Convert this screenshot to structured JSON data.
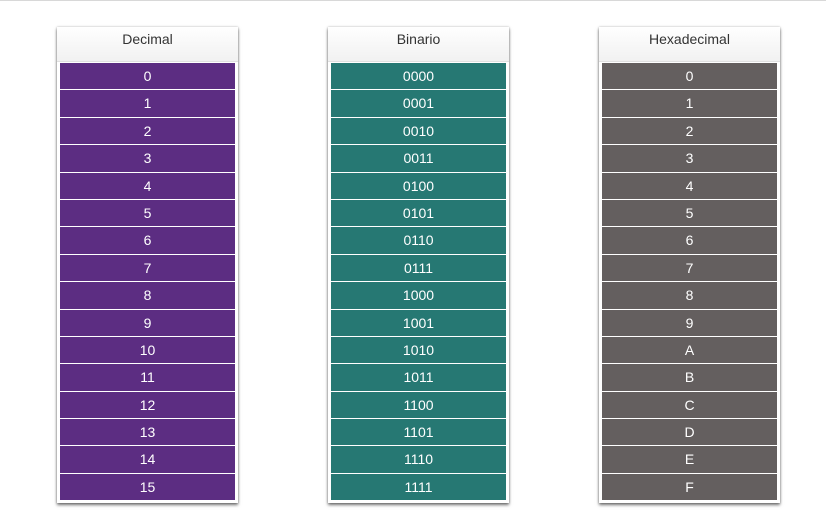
{
  "columns": [
    {
      "header": "Decimal",
      "color": "#5c2d82",
      "cells": [
        "0",
        "1",
        "2",
        "3",
        "4",
        "5",
        "6",
        "7",
        "8",
        "9",
        "10",
        "11",
        "12",
        "13",
        "14",
        "15"
      ]
    },
    {
      "header": "Binario",
      "color": "#267873",
      "cells": [
        "0000",
        "0001",
        "0010",
        "0011",
        "0100",
        "0101",
        "0110",
        "0111",
        "1000",
        "1001",
        "1010",
        "1011",
        "1100",
        "1101",
        "1110",
        "1111"
      ]
    },
    {
      "header": "Hexadecimal",
      "color": "#645f5f",
      "cells": [
        "0",
        "1",
        "2",
        "3",
        "4",
        "5",
        "6",
        "7",
        "8",
        "9",
        "A",
        "B",
        "C",
        "D",
        "E",
        "F"
      ]
    }
  ]
}
